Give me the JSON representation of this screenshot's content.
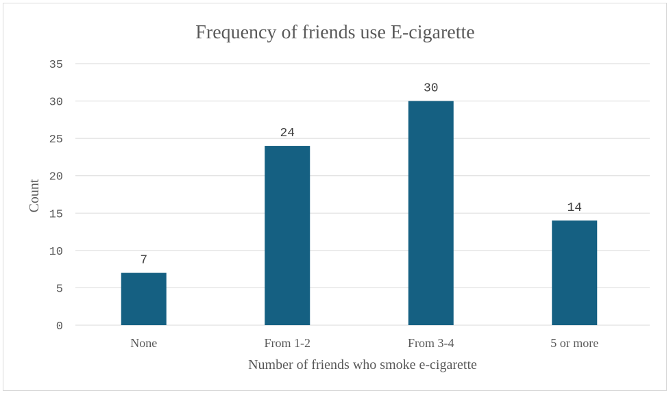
{
  "chart_data": {
    "type": "bar",
    "title": "Frequency of friends use E-cigarette",
    "xlabel": "Number of friends who smoke e-cigarette",
    "ylabel": "Count",
    "categories": [
      "None",
      "From 1-2",
      "From 3-4",
      "5 or more"
    ],
    "values": [
      7,
      24,
      30,
      14
    ],
    "ylim": [
      0,
      35
    ],
    "yticks": [
      0,
      5,
      10,
      15,
      20,
      25,
      30,
      35
    ],
    "grid": true,
    "data_labels": true,
    "bar_color": "#156082"
  }
}
